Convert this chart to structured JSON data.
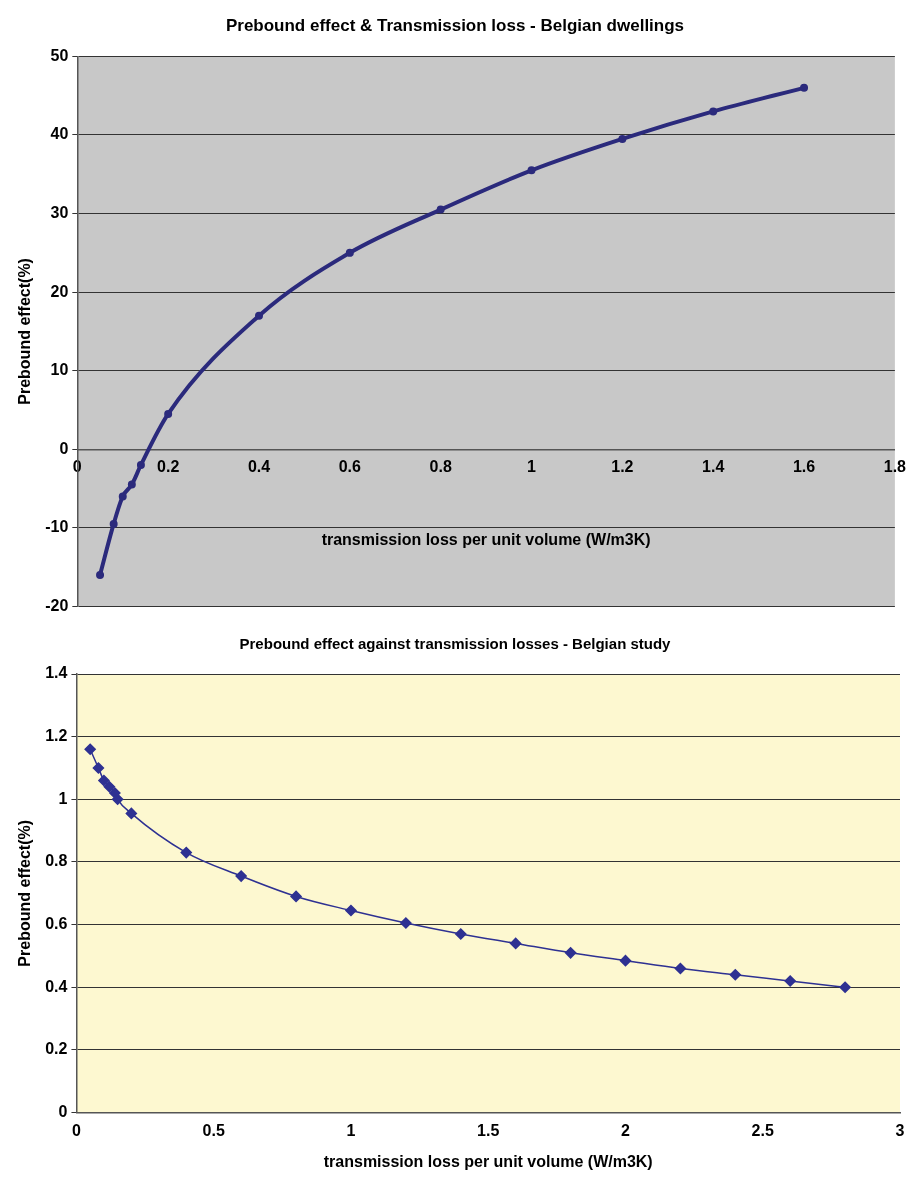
{
  "chart_data": [
    {
      "type": "line",
      "title": "Prebound effect & Transmission loss - Belgian dwellings",
      "xlabel": "transmission loss per unit volume (W/m3K)",
      "ylabel": "Prebound effect(%)",
      "x": [
        0.05,
        0.08,
        0.1,
        0.12,
        0.14,
        0.2,
        0.4,
        0.6,
        0.8,
        1,
        1.2,
        1.4,
        1.6
      ],
      "series": [
        {
          "color": "#2b2a7c",
          "values": [
            -16,
            -9.5,
            -6,
            -4.5,
            -2,
            4.5,
            17,
            25,
            30.5,
            35.5,
            39.5,
            43,
            46
          ]
        }
      ],
      "xlim": [
        0,
        1.8
      ],
      "xticks": [
        0,
        0.2,
        0.4,
        0.6,
        0.8,
        1,
        1.2,
        1.4,
        1.6,
        1.8
      ],
      "ylim": [
        -20,
        50
      ],
      "yticks": [
        -20,
        -10,
        0,
        10,
        20,
        30,
        40,
        50
      ],
      "grid": "y",
      "legend": false,
      "marker": "circle",
      "line_style": "solid"
    },
    {
      "type": "line",
      "title": "Prebound effect against transmission losses - Belgian study",
      "xlabel": "transmission loss per unit volume (W/m3K)",
      "ylabel": "Prebound effect(%)",
      "x": [
        0.05,
        0.08,
        0.1,
        0.12,
        0.14,
        0.15,
        0.2,
        0.4,
        0.6,
        0.8,
        1,
        1.2,
        1.4,
        1.6,
        1.8,
        2,
        2.2,
        2.4,
        2.6,
        2.8
      ],
      "series": [
        {
          "color": "#2e3192",
          "values": [
            1.16,
            1.1,
            1.06,
            1.04,
            1.02,
            1.0,
            0.955,
            0.83,
            0.755,
            0.69,
            0.645,
            0.605,
            0.57,
            0.54,
            0.51,
            0.485,
            0.46,
            0.44,
            0.42,
            0.4
          ]
        }
      ],
      "xlim": [
        0,
        3
      ],
      "xticks": [
        0,
        0.5,
        1,
        1.5,
        2,
        2.5,
        3
      ],
      "ylim": [
        0,
        1.4
      ],
      "yticks": [
        0,
        0.2,
        0.4,
        0.6,
        0.8,
        1,
        1.2,
        1.4
      ],
      "grid": "y",
      "legend": false,
      "marker": "diamond",
      "line_style": "solid"
    }
  ]
}
